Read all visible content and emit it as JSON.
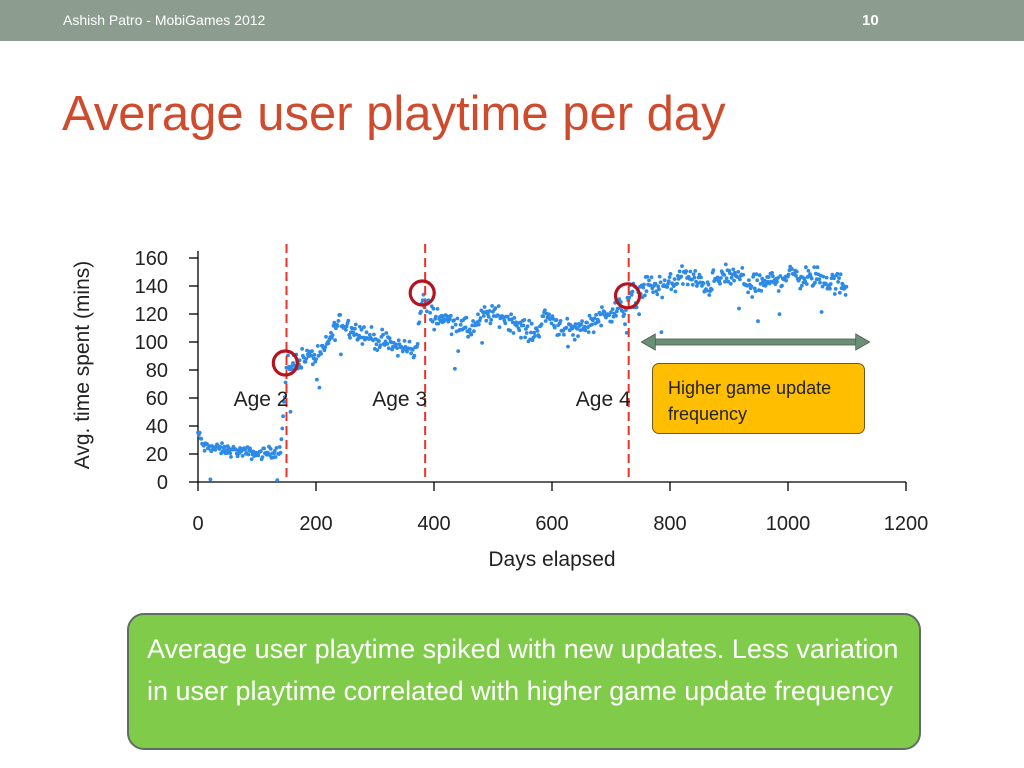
{
  "header": {
    "author": "Ashish Patro - MobiGames 2012",
    "page_number": "10"
  },
  "slide": {
    "title": "Average user playtime per day",
    "callout": "Higher game update frequency",
    "summary": "Average user playtime spiked with new updates. Less variation in user playtime correlated with higher game update frequency"
  },
  "colors": {
    "title": "#cf4b2e",
    "topbar": "#8c9d8f",
    "points": "#2d8ae6",
    "vlines": "#e8332a",
    "circles": "#b3141e",
    "callout_bg": "#ffbf00",
    "summary_bg": "#80cc4a",
    "arrow": "#6a8f76"
  },
  "chart_data": {
    "type": "scatter",
    "title": "",
    "xlabel": "Days elapsed",
    "ylabel": "Avg. time spent (mins)",
    "xlim": [
      0,
      1200
    ],
    "ylim": [
      0,
      165
    ],
    "xticks": [
      0,
      200,
      400,
      600,
      800,
      1000,
      1200
    ],
    "yticks": [
      0,
      20,
      40,
      60,
      80,
      100,
      120,
      140,
      160
    ],
    "grid": false,
    "vertical_lines": [
      150,
      385,
      730
    ],
    "region_labels": [
      {
        "text": "Age 2",
        "x": 150
      },
      {
        "text": "Age 3",
        "x": 385
      },
      {
        "text": "Age 4",
        "x": 730
      }
    ],
    "highlighted_points": [
      {
        "x": 148,
        "y": 85
      },
      {
        "x": 380,
        "y": 135
      },
      {
        "x": 728,
        "y": 133
      }
    ],
    "arrow_span": [
      770,
      1130
    ],
    "series": [
      {
        "trend": [
          [
            0,
            35
          ],
          [
            10,
            25
          ],
          [
            100,
            20
          ],
          [
            140,
            22
          ],
          [
            150,
            80
          ],
          [
            170,
            88
          ],
          [
            200,
            90
          ],
          [
            215,
            95
          ],
          [
            230,
            108
          ],
          [
            240,
            115
          ],
          [
            260,
            110
          ],
          [
            300,
            102
          ],
          [
            340,
            96
          ],
          [
            370,
            95
          ],
          [
            380,
            130
          ],
          [
            400,
            118
          ],
          [
            430,
            115
          ],
          [
            460,
            108
          ],
          [
            490,
            120
          ],
          [
            520,
            118
          ],
          [
            550,
            110
          ],
          [
            570,
            105
          ],
          [
            590,
            120
          ],
          [
            610,
            112
          ],
          [
            640,
            108
          ],
          [
            690,
            120
          ],
          [
            725,
            125
          ],
          [
            730,
            132
          ],
          [
            760,
            140
          ],
          [
            800,
            140
          ],
          [
            820,
            148
          ],
          [
            860,
            140
          ],
          [
            900,
            148
          ],
          [
            950,
            140
          ],
          [
            1000,
            148
          ],
          [
            1050,
            145
          ],
          [
            1100,
            140
          ]
        ],
        "values_note": "daily averages, approx. one point per day"
      }
    ]
  }
}
